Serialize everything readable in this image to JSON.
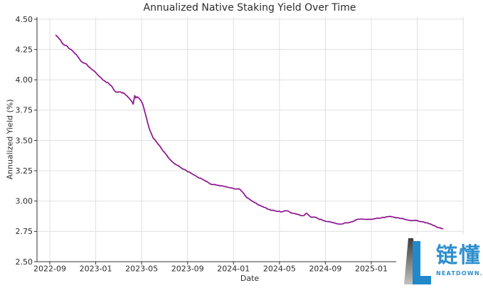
{
  "chart_data": {
    "type": "line",
    "title": "Annualized Native Staking Yield Over Time",
    "xlabel": "Date",
    "ylabel": "Annualized Yield (%)",
    "ylim": [
      2.5,
      4.5
    ],
    "xlim": [
      "2022-07-28",
      "2025-09-01"
    ],
    "grid": true,
    "legend": "none",
    "line_color": "#800080",
    "line_glow_color": "#e7b3e4",
    "grid_color": "#e0e0e0",
    "axis_color": "#333333",
    "tick_text_color": "#2b2b2b",
    "y_ticks": [
      2.5,
      2.75,
      3.0,
      3.25,
      3.5,
      3.75,
      4.0,
      4.25,
      4.5
    ],
    "y_tick_labels": [
      "2.50",
      "2.75",
      "3.00",
      "3.25",
      "3.50",
      "3.75",
      "4.00",
      "4.25",
      "4.50"
    ],
    "x_tick_labels": [
      "2022-09",
      "2023-01",
      "2023-05",
      "2023-09",
      "2024-01",
      "2024-05",
      "2024-09",
      "2025-01"
    ],
    "x_tick_month_offsets": [
      0,
      4,
      8,
      12,
      16,
      20,
      24,
      28
    ],
    "x_grid_month_offsets": [
      0,
      4,
      8,
      12,
      16,
      20,
      24,
      28,
      32,
      36
    ],
    "series": [
      {
        "name": "Annualized Native Staking Yield",
        "points": [
          [
            "2022-09-16",
            4.37
          ],
          [
            "2022-09-23",
            4.35
          ],
          [
            "2022-09-29",
            4.33
          ],
          [
            "2022-10-04",
            4.3
          ],
          [
            "2022-10-10",
            4.285
          ],
          [
            "2022-10-16",
            4.28
          ],
          [
            "2022-10-21",
            4.26
          ],
          [
            "2022-10-27",
            4.25
          ],
          [
            "2022-11-03",
            4.23
          ],
          [
            "2022-11-10",
            4.21
          ],
          [
            "2022-11-17",
            4.18
          ],
          [
            "2022-11-24",
            4.15
          ],
          [
            "2022-11-29",
            4.14
          ],
          [
            "2022-12-07",
            4.13
          ],
          [
            "2022-12-16",
            4.1
          ],
          [
            "2022-12-24",
            4.08
          ],
          [
            "2023-01-01",
            4.06
          ],
          [
            "2023-01-10",
            4.03
          ],
          [
            "2023-01-20",
            4.0
          ],
          [
            "2023-01-29",
            3.98
          ],
          [
            "2023-02-05",
            3.97
          ],
          [
            "2023-02-12",
            3.95
          ],
          [
            "2023-02-18",
            3.92
          ],
          [
            "2023-02-24",
            3.9
          ],
          [
            "2023-03-05",
            3.9
          ],
          [
            "2023-03-15",
            3.89
          ],
          [
            "2023-03-22",
            3.87
          ],
          [
            "2023-03-28",
            3.85
          ],
          [
            "2023-04-03",
            3.83
          ],
          [
            "2023-04-09",
            3.8
          ],
          [
            "2023-04-13",
            3.87
          ],
          [
            "2023-04-16",
            3.85
          ],
          [
            "2023-04-19",
            3.86
          ],
          [
            "2023-04-24",
            3.85
          ],
          [
            "2023-04-29",
            3.83
          ],
          [
            "2023-05-04",
            3.8
          ],
          [
            "2023-05-10",
            3.73
          ],
          [
            "2023-05-15",
            3.67
          ],
          [
            "2023-05-22",
            3.59
          ],
          [
            "2023-06-01",
            3.52
          ],
          [
            "2023-06-14",
            3.47
          ],
          [
            "2023-07-01",
            3.4
          ],
          [
            "2023-07-16",
            3.34
          ],
          [
            "2023-08-01",
            3.3
          ],
          [
            "2023-08-23",
            3.26
          ],
          [
            "2023-09-10",
            3.23
          ],
          [
            "2023-09-26",
            3.2
          ],
          [
            "2023-10-15",
            3.17
          ],
          [
            "2023-11-01",
            3.14
          ],
          [
            "2023-11-21",
            3.13
          ],
          [
            "2023-12-08",
            3.12
          ],
          [
            "2023-12-22",
            3.11
          ],
          [
            "2024-01-04",
            3.1
          ],
          [
            "2024-01-17",
            3.1
          ],
          [
            "2024-01-23",
            3.08
          ],
          [
            "2024-02-05",
            3.03
          ],
          [
            "2024-02-20",
            3.0
          ],
          [
            "2024-03-05",
            2.97
          ],
          [
            "2024-03-20",
            2.95
          ],
          [
            "2024-04-05",
            2.93
          ],
          [
            "2024-04-20",
            2.92
          ],
          [
            "2024-05-05",
            2.91
          ],
          [
            "2024-05-20",
            2.92
          ],
          [
            "2024-06-05",
            2.9
          ],
          [
            "2024-06-20",
            2.89
          ],
          [
            "2024-07-05",
            2.88
          ],
          [
            "2024-07-12",
            2.9
          ],
          [
            "2024-07-22",
            2.87
          ],
          [
            "2024-08-10",
            2.86
          ],
          [
            "2024-08-25",
            2.84
          ],
          [
            "2024-09-10",
            2.83
          ],
          [
            "2024-09-25",
            2.82
          ],
          [
            "2024-10-12",
            2.81
          ],
          [
            "2024-10-27",
            2.82
          ],
          [
            "2024-11-12",
            2.83
          ],
          [
            "2024-11-26",
            2.85
          ],
          [
            "2024-12-12",
            2.85
          ],
          [
            "2024-12-28",
            2.85
          ],
          [
            "2025-01-12",
            2.855
          ],
          [
            "2025-01-26",
            2.86
          ],
          [
            "2025-02-10",
            2.87
          ],
          [
            "2025-02-26",
            2.87
          ],
          [
            "2025-03-13",
            2.86
          ],
          [
            "2025-03-28",
            2.85
          ],
          [
            "2025-04-13",
            2.84
          ],
          [
            "2025-04-28",
            2.84
          ],
          [
            "2025-05-13",
            2.83
          ],
          [
            "2025-05-28",
            2.82
          ],
          [
            "2025-06-12",
            2.8
          ],
          [
            "2025-06-26",
            2.78
          ],
          [
            "2025-07-09",
            2.77
          ]
        ]
      }
    ]
  },
  "watermark": {
    "brand_name": "链懂",
    "brand_domain": "NEATDOWN.COM",
    "brand_color": "#2189c9",
    "text_color": "#2e8fcd",
    "wedge_top_color": "#3c3c3c",
    "wedge_bottom_color": "#c2c2c2"
  }
}
